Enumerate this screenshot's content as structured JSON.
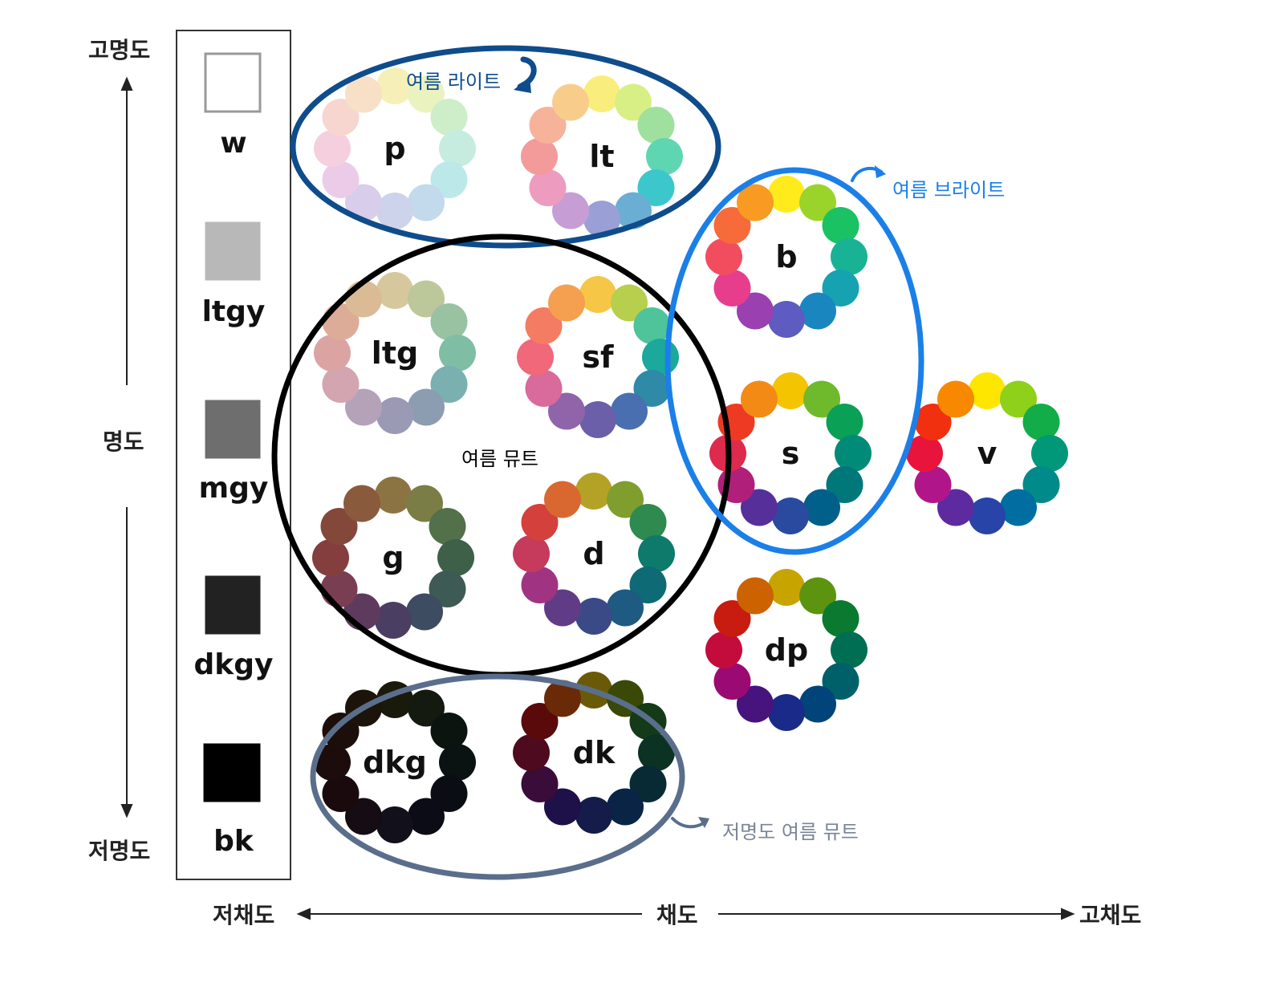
{
  "axes": {
    "lightness_top": "고명도",
    "lightness_mid": "명도",
    "lightness_bottom": "저명도",
    "chroma_left": "저채도",
    "chroma_mid": "채도",
    "chroma_right": "고채도"
  },
  "grays": [
    {
      "label": "w",
      "color": "#ffffff"
    },
    {
      "label": "ltgy",
      "color": "#b8b8b8"
    },
    {
      "label": "mgy",
      "color": "#6e6e6e"
    },
    {
      "label": "dkgy",
      "color": "#222222"
    },
    {
      "label": "bk",
      "color": "#000000"
    }
  ],
  "wheels": [
    {
      "label": "p",
      "colors": [
        "#f6f0b8",
        "#eaf3c0",
        "#cdeec8",
        "#c6ecdf",
        "#bde8ea",
        "#c3d9ec",
        "#cdd3ea",
        "#d8cdea",
        "#eccbe8",
        "#f6cfde",
        "#f7d6d0",
        "#f8e0c6"
      ]
    },
    {
      "label": "lt",
      "colors": [
        "#f9ee7c",
        "#d8ef86",
        "#9fe09e",
        "#5fd6b2",
        "#3cc7cc",
        "#6aaed3",
        "#9a9fd6",
        "#c79dd6",
        "#ee9bc0",
        "#f39a9a",
        "#f7b29a",
        "#f8cd8c"
      ]
    },
    {
      "label": "ltg",
      "colors": [
        "#d6c79d",
        "#bcc79a",
        "#98c2a2",
        "#7fbea5",
        "#7ab0b0",
        "#8c9db2",
        "#9a9ab5",
        "#b4a2b8",
        "#d2a5b0",
        "#dca3a3",
        "#ddac98",
        "#dbbb96"
      ]
    },
    {
      "label": "sf",
      "colors": [
        "#f6c746",
        "#b6cf4c",
        "#4fc39a",
        "#1aa99a",
        "#2f8aa8",
        "#4a6fb0",
        "#6a5fa8",
        "#9064a8",
        "#d86a9c",
        "#f0687a",
        "#f47c62",
        "#f5a050"
      ]
    },
    {
      "label": "b",
      "colors": [
        "#ffeb1c",
        "#9ad42a",
        "#1ac264",
        "#18b394",
        "#17a2b2",
        "#1a86c0",
        "#5e5cc0",
        "#9a40b0",
        "#e63e8c",
        "#f24d5e",
        "#f76a3a",
        "#f99a22"
      ]
    },
    {
      "label": "s",
      "colors": [
        "#f5c400",
        "#6fba2c",
        "#0aa055",
        "#008b78",
        "#00787a",
        "#00608a",
        "#2a4aa0",
        "#56309a",
        "#b0207a",
        "#de2a4c",
        "#ee3a22",
        "#f48a16"
      ]
    },
    {
      "label": "v",
      "colors": [
        "#ffe600",
        "#8ed01a",
        "#12ac48",
        "#009878",
        "#008a8a",
        "#006ea0",
        "#2844a8",
        "#5e2aa0",
        "#b0168a",
        "#e8143c",
        "#f0300e",
        "#f88800"
      ]
    },
    {
      "label": "g",
      "colors": [
        "#8c7442",
        "#7a7e46",
        "#52704a",
        "#3e6048",
        "#3e5a54",
        "#3e4c62",
        "#4a3e62",
        "#5e3a5e",
        "#7a3e52",
        "#843e3e",
        "#84483a",
        "#8a5a3c"
      ]
    },
    {
      "label": "d",
      "colors": [
        "#b4a226",
        "#7f9e2e",
        "#2e8a4e",
        "#0e7a6c",
        "#0e6a74",
        "#1e5a82",
        "#3a4a86",
        "#603c86",
        "#a03482",
        "#c63a5c",
        "#d4403c",
        "#d86830"
      ]
    },
    {
      "label": "dp",
      "colors": [
        "#c8a400",
        "#5c9410",
        "#0a7a30",
        "#006e52",
        "#00606a",
        "#00447a",
        "#1a2a88",
        "#46147c",
        "#9a0a72",
        "#c40c3c",
        "#c81c10",
        "#cc6200"
      ]
    },
    {
      "label": "dkg",
      "colors": [
        "#1a1a0c",
        "#141a10",
        "#0c1410",
        "#0a1212",
        "#0a0e14",
        "#0c0c16",
        "#12101a",
        "#160c14",
        "#1a0a0e",
        "#1c0c0c",
        "#1c0e0a",
        "#1c140a"
      ]
    },
    {
      "label": "dk",
      "colors": [
        "#6a5a08",
        "#3a4808",
        "#143a18",
        "#0c3224",
        "#082a34",
        "#0a2446",
        "#141c4a",
        "#1e1048",
        "#3a0c3a",
        "#4e0a1e",
        "#5a0a0a",
        "#6a2a08"
      ]
    }
  ],
  "groups": {
    "summer_light": {
      "label": "여름 라이트",
      "color": "#0f4c8c"
    },
    "summer_bright": {
      "label": "여름 브라이트",
      "color": "#1b7fe8"
    },
    "summer_mute": {
      "label": "여름 뮤트",
      "color": "#000000"
    },
    "low_light_summer_mute": {
      "label": "저명도 여름 뮤트",
      "color": "#5a6e8c"
    }
  }
}
